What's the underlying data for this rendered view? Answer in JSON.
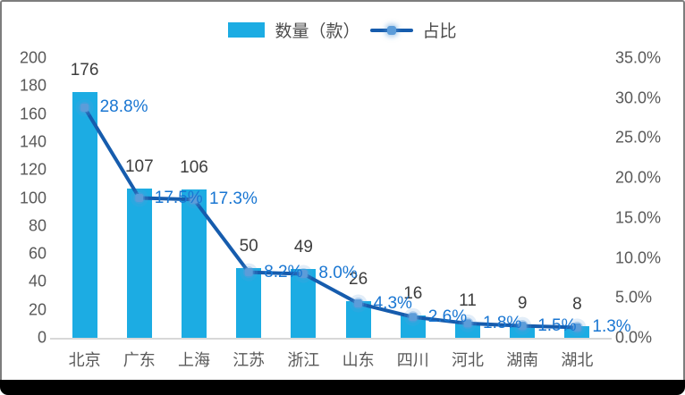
{
  "legend": {
    "series1_label": "数量（款）",
    "series2_label": "占比"
  },
  "chart_data": {
    "type": "combo",
    "title": "",
    "categories": [
      "北京",
      "广东",
      "上海",
      "江苏",
      "浙江",
      "山东",
      "四川",
      "河北",
      "湖南",
      "湖北"
    ],
    "series": [
      {
        "name": "数量（款）",
        "type": "bar",
        "axis": "left",
        "values": [
          176,
          107,
          106,
          50,
          49,
          26,
          16,
          11,
          9,
          8
        ],
        "value_labels": [
          "176",
          "107",
          "106",
          "50",
          "49",
          "26",
          "16",
          "11",
          "9",
          "8"
        ]
      },
      {
        "name": "占比",
        "type": "line",
        "axis": "right",
        "values": [
          28.8,
          17.5,
          17.3,
          8.2,
          8.0,
          4.3,
          2.6,
          1.8,
          1.5,
          1.3
        ],
        "value_labels": [
          "28.8%",
          "17.5%",
          "17.3%",
          "8.2%",
          "8.0%",
          "4.3%",
          "2.6%",
          "1.8%",
          "1.5%",
          "1.3%"
        ]
      }
    ],
    "ylim": [
      0,
      200
    ],
    "y2lim": [
      0,
      35
    ],
    "yticks_left": [
      "0",
      "20",
      "40",
      "60",
      "80",
      "100",
      "120",
      "140",
      "160",
      "180",
      "200"
    ],
    "yticks_right": [
      "0.0%",
      "5.0%",
      "10.0%",
      "15.0%",
      "20.0%",
      "25.0%",
      "30.0%",
      "35.0%"
    ],
    "grid": false,
    "legend_position": "top-center",
    "colors": {
      "bar": "#1cace3",
      "line": "#165cad",
      "marker": "#5c9cd9",
      "pct_label": "#1976d2",
      "value_label": "#3d3d3d",
      "axis_label": "#595959",
      "baseline": "#d8d8d8"
    }
  }
}
